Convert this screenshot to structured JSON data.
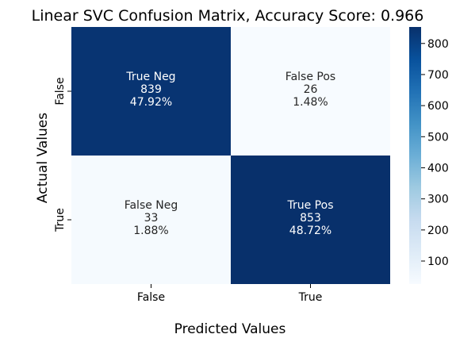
{
  "chart_data": {
    "type": "heatmap",
    "title": "Linear SVC Confusion Matrix, Accuracy Score: 0.966",
    "xlabel": "Predicted Values",
    "ylabel": "Actual Values",
    "x_categories": [
      "False",
      "True"
    ],
    "y_categories": [
      "False",
      "True"
    ],
    "cells": [
      {
        "row": 0,
        "col": 0,
        "name": "True Neg",
        "count": "839",
        "percent": "47.92%",
        "value": 839
      },
      {
        "row": 0,
        "col": 1,
        "name": "False Pos",
        "count": "26",
        "percent": "1.48%",
        "value": 26
      },
      {
        "row": 1,
        "col": 0,
        "name": "False Neg",
        "count": "33",
        "percent": "1.88%",
        "value": 33
      },
      {
        "row": 1,
        "col": 1,
        "name": "True Pos",
        "count": "853",
        "percent": "48.72%",
        "value": 853
      }
    ],
    "colorbar": {
      "min": 26,
      "max": 853,
      "ticks": [
        "100",
        "200",
        "300",
        "400",
        "500",
        "600",
        "700",
        "800"
      ],
      "colormap": "Blues",
      "low_color": "#f7fbff",
      "high_color": "#08306b"
    }
  }
}
